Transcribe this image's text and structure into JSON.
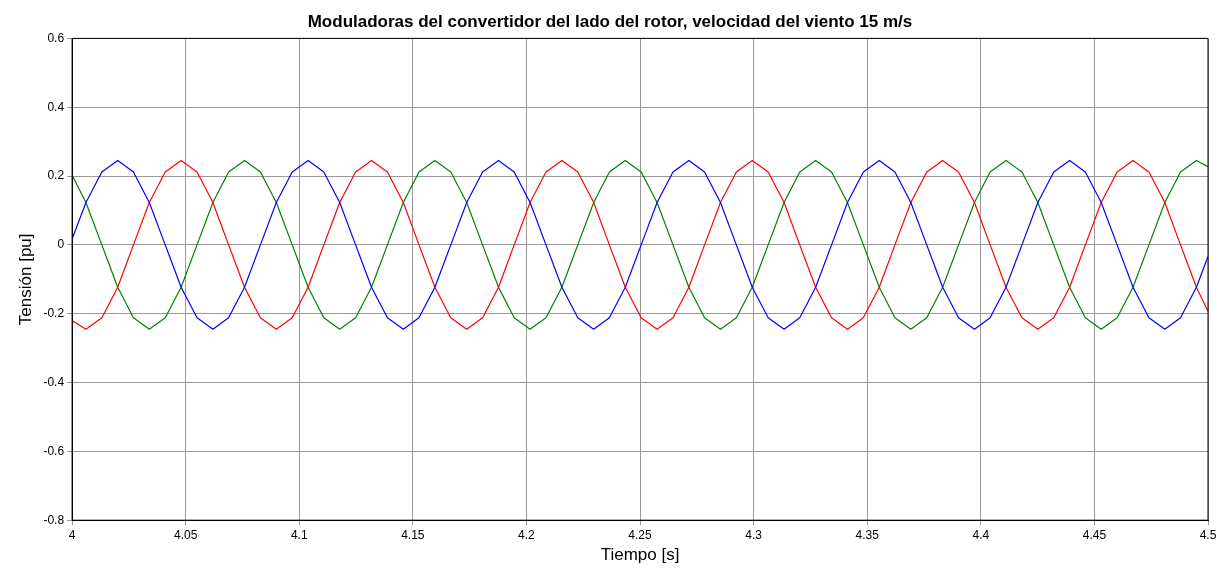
{
  "chart_data": {
    "type": "line",
    "title": "Moduladoras del convertidor del lado del rotor, velocidad del viento 15 m/s",
    "xlabel": "Tiempo [s]",
    "ylabel": "Tensión [pu]",
    "x": [
      4,
      4.0061,
      4.0131,
      4.0201,
      4.027,
      4.034,
      4.041,
      4.048,
      4.055,
      4.062,
      4.0689,
      4.0759,
      4.0829,
      4.0899,
      4.0969,
      4.1039,
      4.1108,
      4.1178,
      4.1248,
      4.1318,
      4.1388,
      4.1458,
      4.1527,
      4.1597,
      4.1667,
      4.1737,
      4.1807,
      4.1877,
      4.1946,
      4.2016,
      4.2086,
      4.2156,
      4.2226,
      4.2296,
      4.2365,
      4.2435,
      4.2505,
      4.2575,
      4.2645,
      4.2715,
      4.2784,
      4.2854,
      4.2924,
      4.2994,
      4.3064,
      4.3134,
      4.3203,
      4.3273,
      4.3343,
      4.3413,
      4.3483,
      4.3553,
      4.3622,
      4.3692,
      4.3762,
      4.3832,
      4.3902,
      4.3972,
      4.4041,
      4.4111,
      4.4181,
      4.4251,
      4.4321,
      4.4391,
      4.446,
      4.453,
      4.46,
      4.467,
      4.474,
      4.481,
      4.4879,
      4.4949,
      4.5
    ],
    "series": [
      {
        "color": "#0000ff",
        "values": [
          0.017,
          0.123,
          0.212,
          0.245,
          0.212,
          0.123,
          0,
          -0.123,
          -0.212,
          -0.245,
          -0.212,
          -0.123,
          0,
          0.123,
          0.212,
          0.245,
          0.212,
          0.123,
          0,
          -0.123,
          -0.212,
          -0.245,
          -0.212,
          -0.123,
          0,
          0.123,
          0.212,
          0.245,
          0.212,
          0.123,
          0,
          -0.123,
          -0.212,
          -0.245,
          -0.212,
          -0.123,
          0,
          0.123,
          0.212,
          0.245,
          0.212,
          0.123,
          0,
          -0.123,
          -0.212,
          -0.245,
          -0.212,
          -0.123,
          0,
          0.123,
          0.212,
          0.245,
          0.212,
          0.123,
          0,
          -0.123,
          -0.212,
          -0.245,
          -0.212,
          -0.123,
          0,
          0.123,
          0.212,
          0.245,
          0.212,
          0.123,
          0,
          -0.123,
          -0.212,
          -0.245,
          -0.212,
          -0.123,
          -0.034
        ]
      },
      {
        "color": "#ff0000",
        "values": [
          -0.22,
          -0.245,
          -0.212,
          -0.123,
          0,
          0.123,
          0.212,
          0.245,
          0.212,
          0.123,
          0,
          -0.123,
          -0.212,
          -0.245,
          -0.212,
          -0.123,
          0,
          0.123,
          0.212,
          0.245,
          0.212,
          0.123,
          0,
          -0.123,
          -0.212,
          -0.245,
          -0.212,
          -0.123,
          0,
          0.123,
          0.212,
          0.245,
          0.212,
          0.123,
          0,
          -0.123,
          -0.212,
          -0.245,
          -0.212,
          -0.123,
          0,
          0.123,
          0.212,
          0.245,
          0.212,
          0.123,
          0,
          -0.123,
          -0.212,
          -0.245,
          -0.212,
          -0.123,
          0,
          0.123,
          0.212,
          0.245,
          0.212,
          0.123,
          0,
          -0.123,
          -0.212,
          -0.245,
          -0.212,
          -0.123,
          0,
          0.123,
          0.212,
          0.245,
          0.212,
          0.123,
          0,
          -0.123,
          -0.193
        ]
      },
      {
        "color": "#008000",
        "values": [
          0.203,
          0.123,
          0,
          -0.123,
          -0.212,
          -0.245,
          -0.212,
          -0.123,
          0,
          0.123,
          0.212,
          0.245,
          0.212,
          0.123,
          0,
          -0.123,
          -0.212,
          -0.245,
          -0.212,
          -0.123,
          0,
          0.123,
          0.212,
          0.245,
          0.212,
          0.123,
          0,
          -0.123,
          -0.212,
          -0.245,
          -0.212,
          -0.123,
          0,
          0.123,
          0.212,
          0.245,
          0.212,
          0.123,
          0,
          -0.123,
          -0.212,
          -0.245,
          -0.212,
          -0.123,
          0,
          0.123,
          0.212,
          0.245,
          0.212,
          0.123,
          0,
          -0.123,
          -0.212,
          -0.245,
          -0.212,
          -0.123,
          0,
          0.123,
          0.212,
          0.245,
          0.212,
          0.123,
          0,
          -0.123,
          -0.212,
          -0.245,
          -0.212,
          -0.123,
          0,
          0.123,
          0.212,
          0.245,
          0.227
        ]
      }
    ],
    "xlim": [
      4,
      4.5
    ],
    "xticks": [
      4,
      4.05,
      4.1,
      4.15,
      4.2,
      4.25,
      4.3,
      4.35,
      4.4,
      4.45,
      4.5
    ],
    "ylim": [
      -0.8,
      0.6
    ],
    "yticks": [
      -0.8,
      -0.6,
      -0.4,
      -0.2,
      0,
      0.2,
      0.4,
      0.6
    ],
    "grid": true,
    "legend": false,
    "marker": "none",
    "line_style": "solid"
  }
}
